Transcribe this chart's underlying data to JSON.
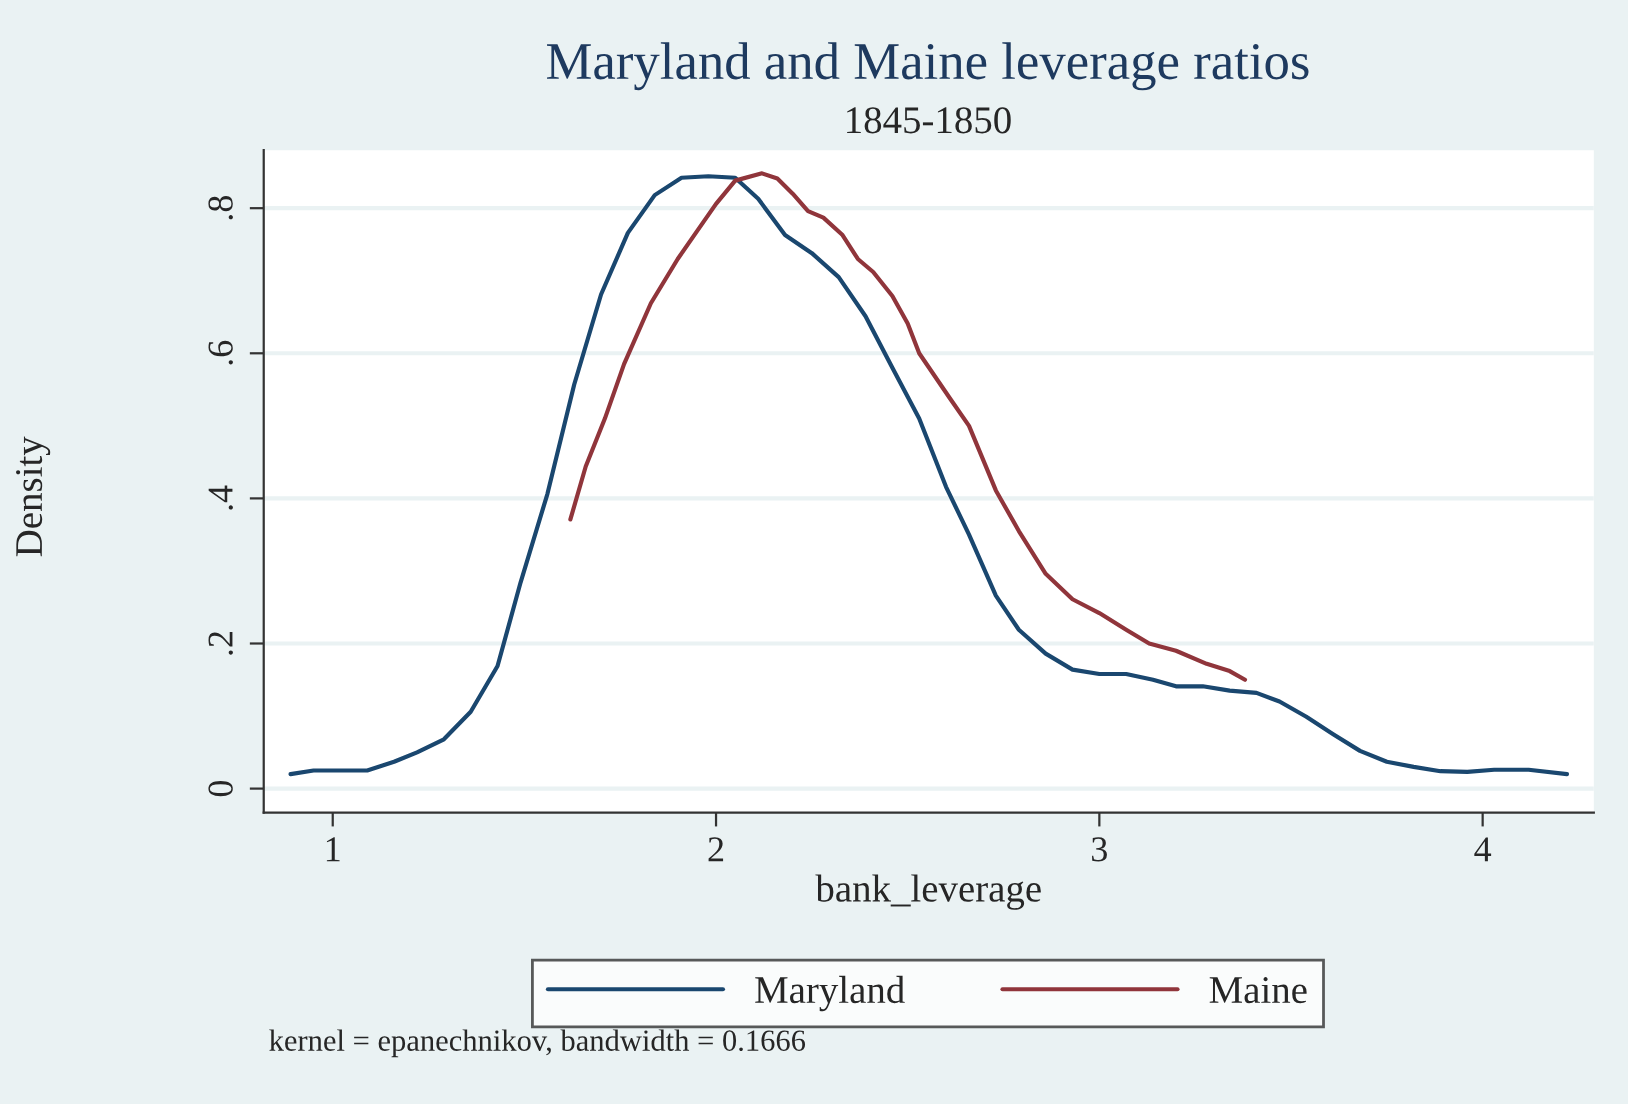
{
  "chart_data": {
    "type": "line",
    "title": "Maryland and Maine leverage ratios",
    "subtitle": "1845-1850",
    "xlabel": "bank_leverage",
    "ylabel": "Density",
    "xlim": [
      0.82,
      4.29
    ],
    "xticks": [
      1,
      2,
      3,
      4
    ],
    "ylim": [
      -0.033,
      0.88
    ],
    "yticks": [
      0,
      {
        "value": 0.2,
        "label": ".2"
      },
      {
        "value": 0.4,
        "label": ".4"
      },
      {
        "value": 0.6,
        "label": ".6"
      },
      {
        "value": 0.8,
        "label": ".8"
      }
    ],
    "grid": "y",
    "legend": "bottom",
    "line_style": "solid",
    "marker": "none",
    "annotations": [
      "kernel = epanechnikov, bandwidth = 0.1666"
    ],
    "series": [
      {
        "name": "Maryland",
        "color": "#1a476f",
        "x": [
          0.89,
          0.95,
          1.09,
          1.16,
          1.22,
          1.29,
          1.36,
          1.43,
          1.49,
          1.56,
          1.63,
          1.7,
          1.77,
          1.84,
          1.91,
          1.98,
          2.05,
          2.11,
          2.18,
          2.25,
          2.32,
          2.39,
          2.46,
          2.53,
          2.6,
          2.66,
          2.73,
          2.79,
          2.86,
          2.93,
          3.0,
          3.07,
          3.14,
          3.2,
          3.27,
          3.34,
          3.41,
          3.47,
          3.54,
          3.61,
          3.68,
          3.75,
          3.82,
          3.89,
          3.96,
          4.03,
          4.12,
          4.22
        ],
        "values": [
          0.02,
          0.025,
          0.025,
          0.037,
          0.05,
          0.068,
          0.106,
          0.169,
          0.284,
          0.406,
          0.557,
          0.681,
          0.766,
          0.818,
          0.842,
          0.844,
          0.842,
          0.813,
          0.763,
          0.738,
          0.705,
          0.651,
          0.58,
          0.51,
          0.416,
          0.35,
          0.266,
          0.219,
          0.186,
          0.164,
          0.158,
          0.158,
          0.15,
          0.141,
          0.141,
          0.135,
          0.132,
          0.12,
          0.099,
          0.075,
          0.052,
          0.037,
          0.03,
          0.024,
          0.023,
          0.026,
          0.026,
          0.02
        ]
      },
      {
        "name": "Maine",
        "color": "#90353b",
        "x": [
          1.62,
          1.66,
          1.71,
          1.76,
          1.83,
          1.9,
          1.95,
          2.0,
          2.05,
          2.12,
          2.16,
          2.2,
          2.24,
          2.28,
          2.33,
          2.37,
          2.41,
          2.46,
          2.5,
          2.53,
          2.61,
          2.66,
          2.73,
          2.79,
          2.86,
          2.93,
          3.0,
          3.07,
          3.13,
          3.2,
          3.28,
          3.34,
          3.38
        ],
        "values": [
          0.371,
          0.444,
          0.51,
          0.585,
          0.669,
          0.73,
          0.768,
          0.806,
          0.838,
          0.848,
          0.841,
          0.82,
          0.796,
          0.787,
          0.763,
          0.73,
          0.712,
          0.679,
          0.641,
          0.6,
          0.538,
          0.5,
          0.411,
          0.355,
          0.296,
          0.261,
          0.242,
          0.219,
          0.2,
          0.19,
          0.172,
          0.162,
          0.15
        ]
      }
    ]
  }
}
